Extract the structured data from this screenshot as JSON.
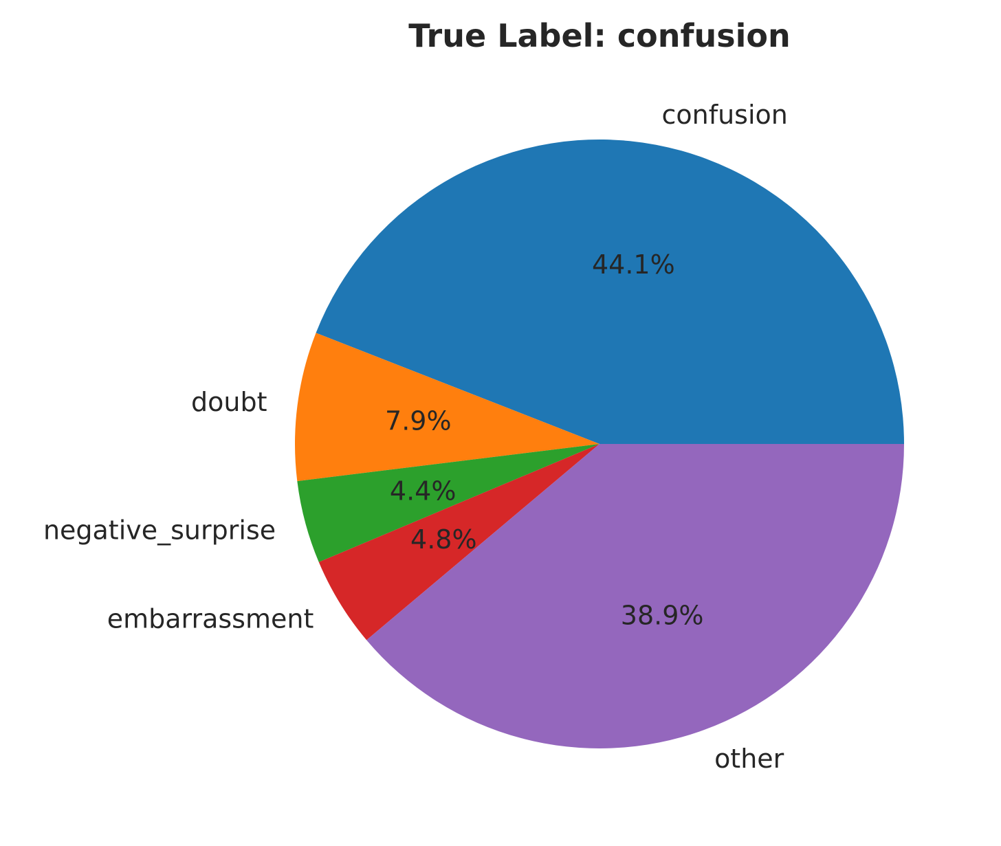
{
  "chart_data": {
    "type": "pie",
    "title": "True Label: confusion",
    "slices": [
      {
        "label": "confusion",
        "value": 44.1,
        "pct_text": "44.1%",
        "color": "#1f77b4"
      },
      {
        "label": "doubt",
        "value": 7.9,
        "pct_text": "7.9%",
        "color": "#ff7f0e"
      },
      {
        "label": "negative_surprise",
        "value": 4.4,
        "pct_text": "4.4%",
        "color": "#2ca02c"
      },
      {
        "label": "embarrassment",
        "value": 4.8,
        "pct_text": "4.8%",
        "color": "#d62728"
      },
      {
        "label": "other",
        "value": 38.9,
        "pct_text": "38.9%",
        "color": "#9467bd"
      }
    ],
    "start_angle": 0,
    "direction": "counterclockwise",
    "legend": "none"
  }
}
